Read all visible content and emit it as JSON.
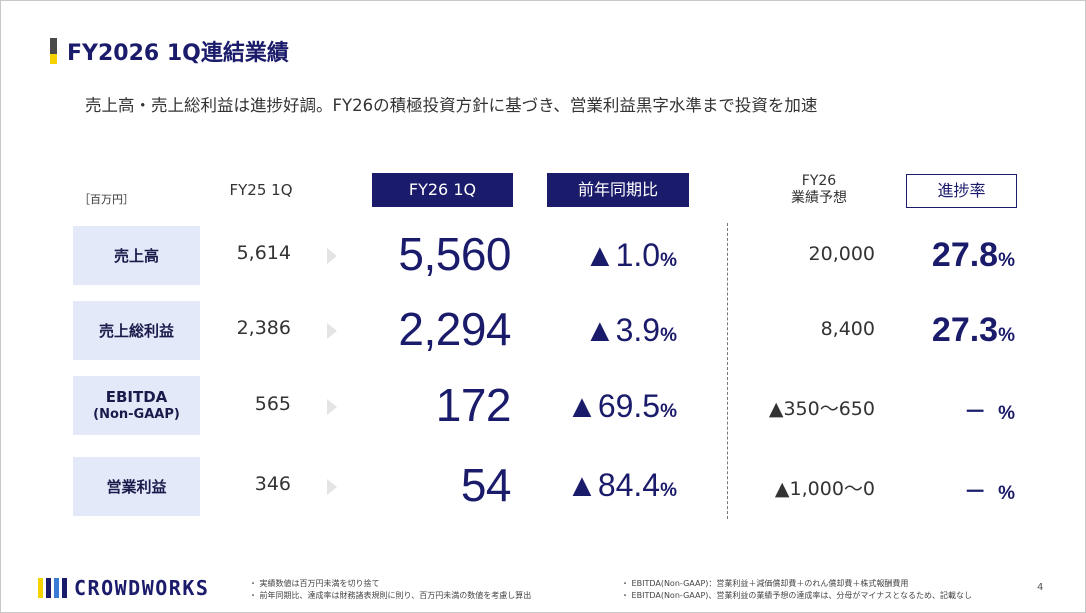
{
  "title": "FY2026 1Q連結業績",
  "subtitle": "売上高・売上総利益は進捗好調。FY26の積極投資方針に基づき、営業利益黒字水準まで投資を加速",
  "unit": "［百万円］",
  "headers": {
    "fy25": "FY25 1Q",
    "fy26": "FY26 1Q",
    "yoy": "前年同期比",
    "forecast_line1": "FY26",
    "forecast_line2": "業績予想",
    "progress": "進捗率"
  },
  "rows": [
    {
      "label": "売上高",
      "label2": "",
      "fy25": "5,614",
      "fy26": "5,560",
      "yoy": "▲1.0",
      "yoy_unit": "%",
      "forecast": "20,000",
      "progress": "27.8",
      "progress_unit": "%"
    },
    {
      "label": "売上総利益",
      "label2": "",
      "fy25": "2,386",
      "fy26": "2,294",
      "yoy": "▲3.9",
      "yoy_unit": "%",
      "forecast": "8,400",
      "progress": "27.3",
      "progress_unit": "%"
    },
    {
      "label": "EBITDA",
      "label2": "(Non-GAAP)",
      "fy25": "565",
      "fy26": "172",
      "yoy": "▲69.5",
      "yoy_unit": "%",
      "forecast": "▲350〜650",
      "progress": "－",
      "progress_unit": "%"
    },
    {
      "label": "営業利益",
      "label2": "",
      "fy25": "346",
      "fy26": "54",
      "yoy": "▲84.4",
      "yoy_unit": "%",
      "forecast": "▲1,000〜0",
      "progress": "－",
      "progress_unit": "%"
    }
  ],
  "footer": {
    "logo_text": "CROWDWORKS",
    "logo_colors": [
      "#f5d300",
      "#1b1b6b",
      "#3a7bd5",
      "#1b1b6b"
    ],
    "notes_left": [
      "・ 実績数値は百万円未満を切り捨て",
      "・ 前年同期比、達成率は財務諸表規則に則り、百万円未満の数値を考慮し算出"
    ],
    "notes_right": [
      "・ EBITDA(Non-GAAP)：営業利益＋減価償却費＋のれん償却費＋株式報酬費用",
      "・ EBITDA(Non-GAAP)、営業利益の業績予想の達成率は、分母がマイナスとなるため、記載なし"
    ],
    "page_number": "4"
  }
}
